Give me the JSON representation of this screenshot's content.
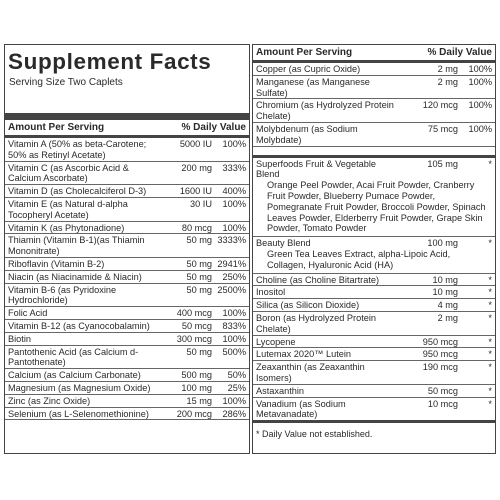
{
  "title": "Supplement Facts",
  "serving_size": "Serving Size Two Caplets",
  "left_header": {
    "amount": "Amount Per Serving",
    "dv": "% Daily Value"
  },
  "right_header": {
    "amount": "Amount Per Serving",
    "dv": "% Daily Value"
  },
  "left_rows": [
    {
      "name": "Vitamin A (50% as beta-Carotene;\n  50% as Retinyl Acetate)",
      "amount": "5000 IU",
      "dv": "100%"
    },
    {
      "name": "Vitamin C (as Ascorbic Acid &\n  Calcium Ascorbate)",
      "amount": "200 mg",
      "dv": "333%"
    },
    {
      "name": "Vitamin D (as Cholecalciferol D-3)",
      "amount": "1600 IU",
      "dv": "400%"
    },
    {
      "name": "Vitamin E (as Natural d-alpha\n  Tocopheryl Acetate)",
      "amount": "30 IU",
      "dv": "100%"
    },
    {
      "name": "Vitamin K (as Phytonadione)",
      "amount": "80 mcg",
      "dv": "100%"
    },
    {
      "name": "Thiamin (Vitamin B-1)(as Thiamin Mononitrate)",
      "amount": "50 mg",
      "dv": "3333%"
    },
    {
      "name": "Riboflavin (Vitamin B-2)",
      "amount": "50 mg",
      "dv": "2941%"
    },
    {
      "name": "Niacin (as Niacinamide & Niacin)",
      "amount": "50 mg",
      "dv": "250%"
    },
    {
      "name": "Vitamin B-6 (as Pyridoxine Hydrochloride)",
      "amount": "50 mg",
      "dv": "2500%"
    },
    {
      "name": "Folic Acid",
      "amount": "400 mcg",
      "dv": "100%"
    },
    {
      "name": "Vitamin B-12 (as Cyanocobalamin)",
      "amount": "50 mcg",
      "dv": "833%"
    },
    {
      "name": "Biotin",
      "amount": "300 mcg",
      "dv": "100%"
    },
    {
      "name": "Pantothenic Acid (as Calcium d-Pantothenate)",
      "amount": "50 mg",
      "dv": "500%"
    },
    {
      "name": "Calcium (as Calcium Carbonate)",
      "amount": "500 mg",
      "dv": "50%"
    },
    {
      "name": "Magnesium (as Magnesium Oxide)",
      "amount": "100 mg",
      "dv": "25%"
    },
    {
      "name": "Zinc (as Zinc Oxide)",
      "amount": "15 mg",
      "dv": "100%"
    },
    {
      "name": "Selenium (as L-Selenomethionine)",
      "amount": "200 mcg",
      "dv": "286%"
    }
  ],
  "right_rows_a": [
    {
      "name": "Copper (as Cupric Oxide)",
      "amount": "2 mg",
      "dv": "100%"
    },
    {
      "name": "Manganese (as Manganese Sulfate)",
      "amount": "2 mg",
      "dv": "100%"
    },
    {
      "name": "Chromium (as Hydrolyzed Protein Chelate)",
      "amount": "120 mcg",
      "dv": "100%"
    },
    {
      "name": "Molybdenum (as Sodium Molybdate)",
      "amount": "75 mcg",
      "dv": "100%"
    }
  ],
  "blends": [
    {
      "name": "Superfoods Fruit & Vegetable Blend",
      "amount": "105 mg",
      "dv": "*",
      "detail": "Orange Peel Powder, Acai Fruit Powder, Cranberry Fruit Powder, Blueberry Pumace Powder, Pomegranate Fruit Powder, Broccoli Powder, Spinach Leaves Powder, Elderberry Fruit Powder, Grape Skin Powder, Tomato Powder"
    },
    {
      "name": "Beauty Blend",
      "amount": "100 mg",
      "dv": "*",
      "detail": "Green Tea Leaves Extract, alpha-Lipoic Acid, Collagen, Hyaluronic Acid (HA)"
    }
  ],
  "right_rows_b": [
    {
      "name": "Choline (as Choline Bitartrate)",
      "amount": "10 mg",
      "dv": "*"
    },
    {
      "name": "Inositol",
      "amount": "10 mg",
      "dv": "*"
    },
    {
      "name": "Silica (as Silicon Dioxide)",
      "amount": "4 mg",
      "dv": "*"
    },
    {
      "name": "Boron (as Hydrolyzed Protein Chelate)",
      "amount": "2 mg",
      "dv": "*"
    },
    {
      "name": "Lycopene",
      "amount": "950 mcg",
      "dv": "*"
    },
    {
      "name": "Lutemax 2020™ Lutein",
      "amount": "950 mcg",
      "dv": "*"
    },
    {
      "name": "Zeaxanthin (as Zeaxanthin Isomers)",
      "amount": "190 mcg",
      "dv": "*"
    },
    {
      "name": "Astaxanthin",
      "amount": "50 mcg",
      "dv": "*"
    },
    {
      "name": "Vanadium (as Sodium Metavanadate)",
      "amount": "10 mcg",
      "dv": "*"
    }
  ],
  "footnote": "* Daily Value not established."
}
